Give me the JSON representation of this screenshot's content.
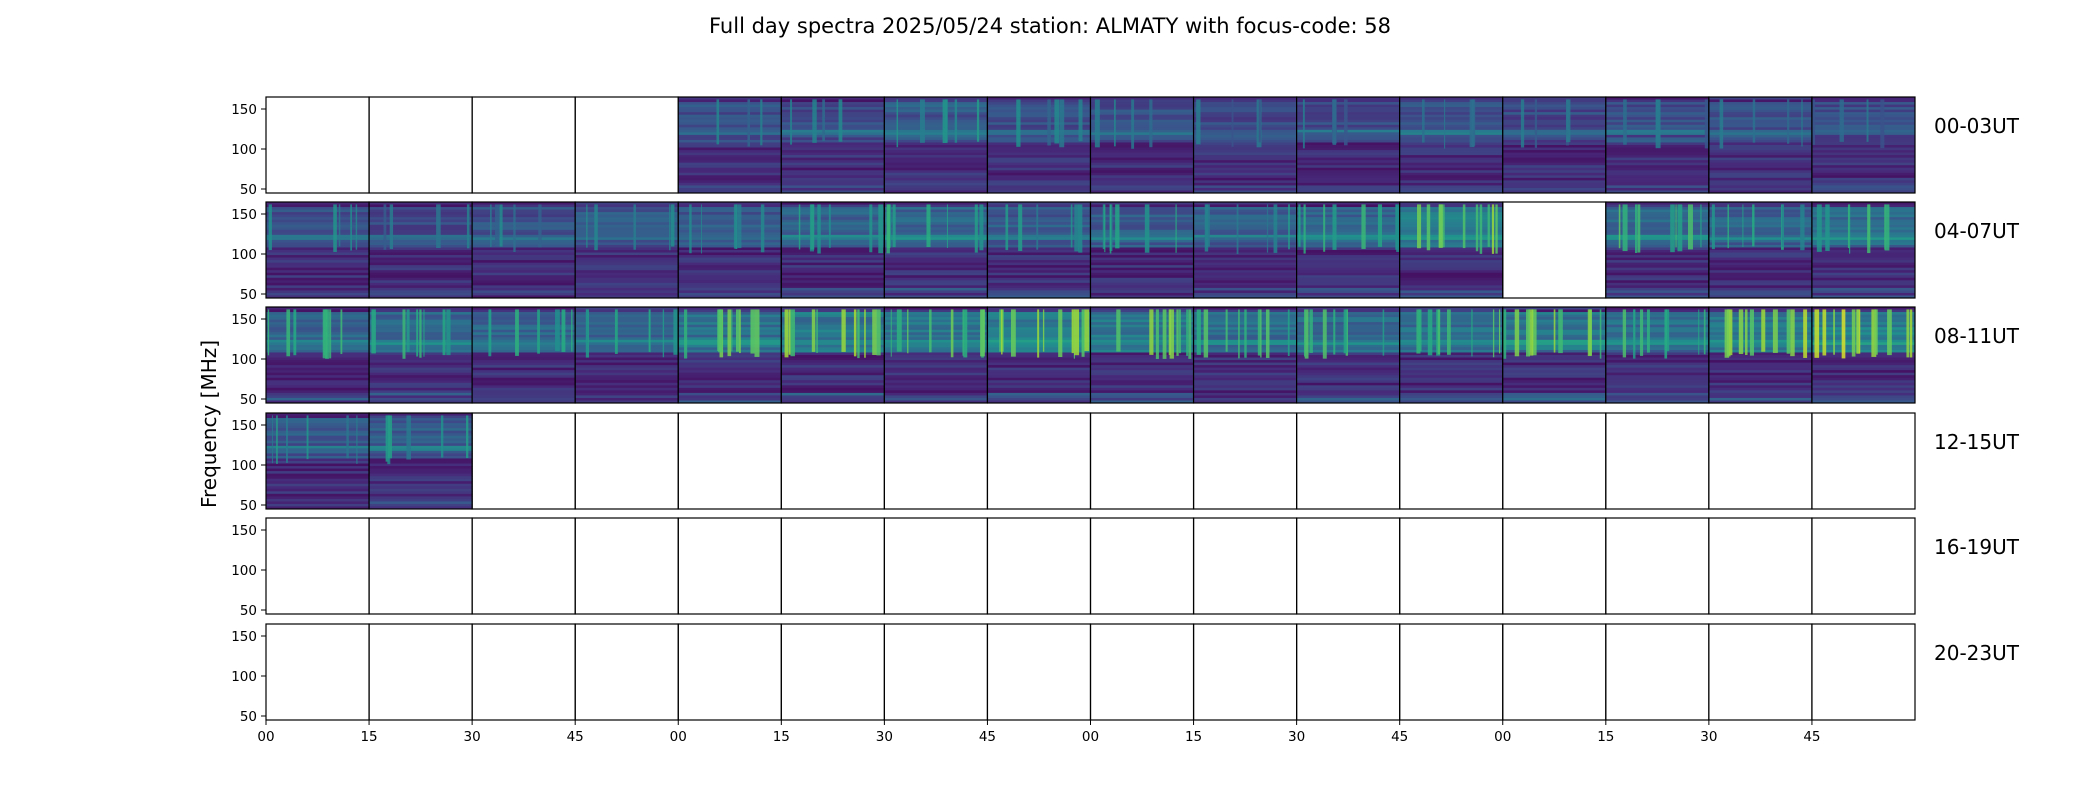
{
  "chart_data": {
    "type": "heatmap",
    "title": "Full day spectra 2025/05/24 station: ALMATY with focus-code: 58",
    "ylabel": "Frequency [MHz]",
    "xlabel": "",
    "ylim": [
      45,
      165
    ],
    "y_ticks": [
      "50",
      "100",
      "150"
    ],
    "x_ticks": [
      "00",
      "15",
      "30",
      "45",
      "00",
      "15",
      "30",
      "45",
      "00",
      "15",
      "30",
      "45",
      "00",
      "15",
      "30",
      "45"
    ],
    "colormap": [
      "#440154",
      "#472a7a",
      "#3b518b",
      "#2c718e",
      "#21908d",
      "#27ad81",
      "#5cc863",
      "#aadc32",
      "#fde725"
    ],
    "rows": [
      {
        "label": "00-03UT",
        "cells": [
          0,
          0,
          0,
          0,
          1,
          1,
          1,
          1,
          1,
          1,
          1,
          1,
          1,
          1,
          1,
          1
        ],
        "intensity": [
          0,
          0,
          0,
          0,
          0.3,
          0.32,
          0.42,
          0.35,
          0.3,
          0.28,
          0.3,
          0.33,
          0.28,
          0.3,
          0.3,
          0.28
        ]
      },
      {
        "label": "04-07UT",
        "cells": [
          1,
          1,
          1,
          1,
          1,
          1,
          1,
          1,
          1,
          1,
          1,
          1,
          0,
          1,
          1,
          1
        ],
        "intensity": [
          0.38,
          0.32,
          0.34,
          0.36,
          0.42,
          0.5,
          0.55,
          0.45,
          0.48,
          0.42,
          0.55,
          0.75,
          0,
          0.62,
          0.5,
          0.58
        ]
      },
      {
        "label": "08-11UT",
        "cells": [
          1,
          1,
          1,
          1,
          1,
          1,
          1,
          1,
          1,
          1,
          1,
          1,
          1,
          1,
          1,
          1
        ],
        "intensity": [
          0.55,
          0.58,
          0.52,
          0.5,
          0.68,
          0.75,
          0.7,
          0.78,
          0.72,
          0.62,
          0.6,
          0.65,
          0.72,
          0.62,
          0.8,
          0.85
        ]
      },
      {
        "label": "12-15UT",
        "cells": [
          1,
          1,
          0,
          0,
          0,
          0,
          0,
          0,
          0,
          0,
          0,
          0,
          0,
          0,
          0,
          0
        ],
        "intensity": [
          0.4,
          0.42,
          0,
          0,
          0,
          0,
          0,
          0,
          0,
          0,
          0,
          0,
          0,
          0,
          0,
          0
        ]
      },
      {
        "label": "16-19UT",
        "cells": [
          0,
          0,
          0,
          0,
          0,
          0,
          0,
          0,
          0,
          0,
          0,
          0,
          0,
          0,
          0,
          0
        ],
        "intensity": [
          0,
          0,
          0,
          0,
          0,
          0,
          0,
          0,
          0,
          0,
          0,
          0,
          0,
          0,
          0,
          0
        ]
      },
      {
        "label": "20-23UT",
        "cells": [
          0,
          0,
          0,
          0,
          0,
          0,
          0,
          0,
          0,
          0,
          0,
          0,
          0,
          0,
          0,
          0
        ],
        "intensity": [
          0,
          0,
          0,
          0,
          0,
          0,
          0,
          0,
          0,
          0,
          0,
          0,
          0,
          0,
          0,
          0
        ]
      }
    ]
  }
}
